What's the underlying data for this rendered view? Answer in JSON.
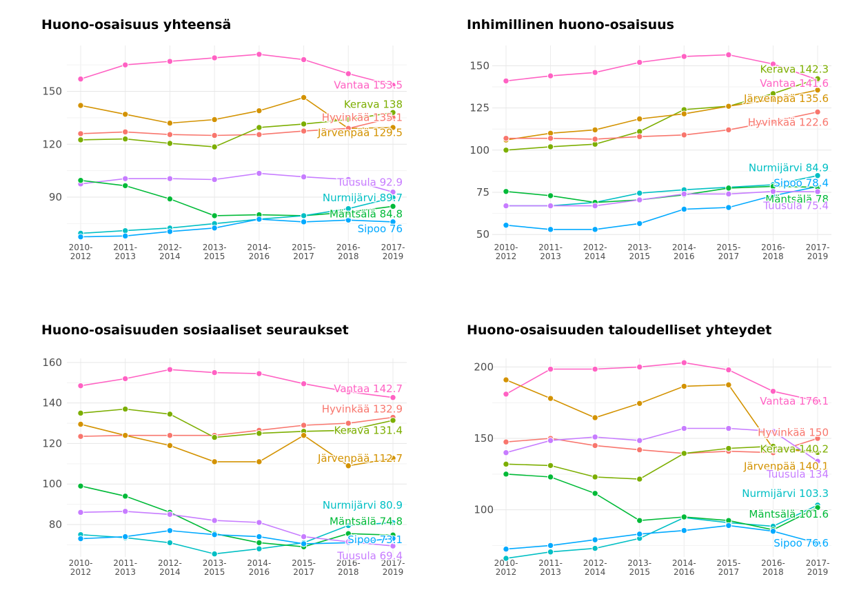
{
  "chart_data": [
    {
      "type": "line",
      "title": "Huono-osaisuus yhteensä",
      "x": [
        "2010-2012",
        "2011-2013",
        "2012-2014",
        "2013-2015",
        "2014-2016",
        "2015-2017",
        "2016-2018",
        "2017-2019"
      ],
      "yticks": [
        90,
        120,
        150
      ],
      "ylim": [
        65,
        176
      ],
      "grid": true,
      "series": [
        {
          "name": "Vantaa",
          "color": "#FF61C3",
          "values": [
            157,
            165,
            167,
            169,
            171,
            168,
            160,
            153.5
          ],
          "label": "Vantaa 153.5",
          "label_y": 153.5
        },
        {
          "name": "Järvenpää",
          "color": "#D39200",
          "values": [
            142,
            137,
            132,
            134,
            139,
            146.5,
            129,
            129.5
          ],
          "label": "Järvenpää 129.5",
          "label_y": 126.5
        },
        {
          "name": "Hyvinkää",
          "color": "#F8766D",
          "values": [
            126,
            127,
            125.5,
            125,
            125.5,
            127.5,
            129,
            135.1
          ],
          "label": "Hyvinkää 135.1",
          "label_y": 135.1
        },
        {
          "name": "Kerava",
          "color": "#7CAE00",
          "values": [
            122.5,
            123,
            120.5,
            118.5,
            129.5,
            131.5,
            134,
            138
          ],
          "label": "Kerava 138",
          "label_y": 142.5
        },
        {
          "name": "Tuusula",
          "color": "#C77CFF",
          "values": [
            97.5,
            100.5,
            100.5,
            100,
            103.5,
            101.5,
            100,
            92.9
          ],
          "label": "Tuusula 92.9",
          "label_y": 98.5
        },
        {
          "name": "Mäntsälä",
          "color": "#00BA38",
          "values": [
            99.5,
            96.5,
            89,
            79.5,
            80,
            79.5,
            81.5,
            84.8
          ],
          "label": "Mäntsälä 84.8",
          "label_y": 80.5
        },
        {
          "name": "Nurmijärvi",
          "color": "#00BFC4",
          "values": [
            69.5,
            71,
            72.5,
            75,
            77.5,
            79.5,
            83.5,
            89.7
          ],
          "label": "Nurmijärvi 89.7",
          "label_y": 89.7
        },
        {
          "name": "Sipoo",
          "color": "#00A9FF",
          "values": [
            67.5,
            68,
            70.5,
            72.5,
            77.5,
            76,
            77,
            76
          ],
          "label": "Sipoo 76",
          "label_y": 72
        }
      ]
    },
    {
      "type": "line",
      "title": "Inhimillinen huono-osaisuus",
      "x": [
        "2010-2012",
        "2011-2013",
        "2012-2014",
        "2013-2015",
        "2014-2016",
        "2015-2017",
        "2016-2018",
        "2017-2019"
      ],
      "yticks": [
        50,
        75,
        100,
        125,
        150
      ],
      "ylim": [
        46,
        162
      ],
      "grid": true,
      "series": [
        {
          "name": "Vantaa",
          "color": "#FF61C3",
          "values": [
            141,
            144,
            146,
            152,
            155.5,
            156.5,
            151,
            141.6
          ],
          "label": "Vantaa 141.6",
          "label_y": 139.5
        },
        {
          "name": "Kerava",
          "color": "#7CAE00",
          "values": [
            100,
            102,
            103.5,
            111,
            124,
            126,
            133.5,
            142.3
          ],
          "label": "Kerava 142.3",
          "label_y": 148
        },
        {
          "name": "Järvenpää",
          "color": "#D39200",
          "values": [
            106,
            110,
            112,
            118.5,
            121.5,
            126,
            130,
            135.6
          ],
          "label": "Järvenpää 135.6",
          "label_y": 130.5
        },
        {
          "name": "Hyvinkää",
          "color": "#F8766D",
          "values": [
            107,
            107,
            106.5,
            108,
            109,
            112,
            117,
            122.6
          ],
          "label": "Hyvinkää 122.6",
          "label_y": 116.5
        },
        {
          "name": "Nurmijärvi",
          "color": "#00BFC4",
          "values": [
            67,
            67,
            69,
            74.5,
            76.5,
            78,
            79.5,
            84.9
          ],
          "label": "Nurmijärvi 84.9",
          "label_y": 89.5
        },
        {
          "name": "Sipoo",
          "color": "#00A9FF",
          "values": [
            55.5,
            53,
            53,
            56.5,
            65,
            66,
            73,
            78.4
          ],
          "label": "Sipoo 78.4",
          "label_y": 80.5
        },
        {
          "name": "Mäntsälä",
          "color": "#00BA38",
          "values": [
            75.5,
            73,
            69,
            70.5,
            73.5,
            77.5,
            78.5,
            78
          ],
          "label": "Mäntsälä 78",
          "label_y": 71
        },
        {
          "name": "Tuusula",
          "color": "#C77CFF",
          "values": [
            67,
            67,
            67,
            70.5,
            74,
            74,
            75.5,
            75.4
          ],
          "label": "Tuusula 75.4",
          "label_y": 67
        }
      ]
    },
    {
      "type": "line",
      "title": "Huono-osaisuuden sosiaaliset seuraukset",
      "x": [
        "2010-2012",
        "2011-2013",
        "2012-2014",
        "2013-2015",
        "2014-2016",
        "2015-2017",
        "2016-2018",
        "2017-2019"
      ],
      "yticks": [
        80,
        100,
        120,
        140,
        160
      ],
      "ylim": [
        64,
        162
      ],
      "grid": true,
      "series": [
        {
          "name": "Vantaa",
          "color": "#FF61C3",
          "values": [
            148.5,
            152,
            156.5,
            155,
            154.5,
            149.5,
            145.5,
            142.7
          ],
          "label": "Vantaa 142.7",
          "label_y": 147
        },
        {
          "name": "Hyvinkää",
          "color": "#F8766D",
          "values": [
            123.5,
            124,
            124,
            124,
            126.5,
            129,
            130,
            132.9
          ],
          "label": "Hyvinkää 132.9",
          "label_y": 137
        },
        {
          "name": "Kerava",
          "color": "#7CAE00",
          "values": [
            135,
            137,
            134.5,
            123,
            125,
            126,
            126.5,
            131.4
          ],
          "label": "Kerava 131.4",
          "label_y": 126.5
        },
        {
          "name": "Järvenpää",
          "color": "#D39200",
          "values": [
            129.5,
            124,
            119,
            111,
            111,
            124,
            109,
            112.7
          ],
          "label": "Järvenpää 112.7",
          "label_y": 112.7
        },
        {
          "name": "Nurmijärvi",
          "color": "#00BFC4",
          "values": [
            75,
            73.5,
            71,
            65.5,
            68,
            71,
            79.5,
            80.9
          ],
          "label": "Nurmijärvi 80.9",
          "label_y": 89.5
        },
        {
          "name": "Mäntsälä",
          "color": "#00BA38",
          "values": [
            99,
            94,
            86,
            75.5,
            71,
            69,
            75.5,
            74.8
          ],
          "label": "Mäntsälä 74.8",
          "label_y": 81.5
        },
        {
          "name": "Sipoo",
          "color": "#00A9FF",
          "values": [
            73,
            74,
            77,
            75,
            74,
            70.5,
            71,
            73.1
          ],
          "label": "Sipoo 73.1",
          "label_y": 72.5
        },
        {
          "name": "Tuusula",
          "color": "#C77CFF",
          "values": [
            86,
            86.5,
            85,
            82,
            81,
            74,
            71.5,
            69.4
          ],
          "label": "Tuusula 69.4",
          "label_y": 64.5
        }
      ]
    },
    {
      "type": "line",
      "title": "Huono-osaisuuden taloudelliset yhteydet",
      "x": [
        "2010-2012",
        "2011-2013",
        "2012-2014",
        "2013-2015",
        "2014-2016",
        "2015-2017",
        "2016-2018",
        "2017-2019"
      ],
      "yticks": [
        100,
        150,
        200
      ],
      "ylim": [
        67,
        206
      ],
      "grid": true,
      "series": [
        {
          "name": "Vantaa",
          "color": "#FF61C3",
          "values": [
            181,
            198.5,
            198.5,
            200,
            203,
            198,
            183,
            176.1
          ],
          "label": "Vantaa 176.1",
          "label_y": 176.1
        },
        {
          "name": "Järvenpää",
          "color": "#D39200",
          "values": [
            191,
            178,
            164.5,
            174.5,
            186.5,
            187.5,
            143,
            140.1
          ],
          "label": "Järvenpää 140.1",
          "label_y": 130.5
        },
        {
          "name": "Hyvinkää",
          "color": "#F8766D",
          "values": [
            147.5,
            150,
            145,
            142,
            139.5,
            141,
            140,
            150
          ],
          "label": "Hyvinkää 150",
          "label_y": 154
        },
        {
          "name": "Kerava",
          "color": "#7CAE00",
          "values": [
            132,
            131,
            123,
            121.5,
            139.5,
            143,
            144.5,
            140.2
          ],
          "label": "Kerava 140.2",
          "label_y": 142.5
        },
        {
          "name": "Tuusula",
          "color": "#C77CFF",
          "values": [
            140,
            148.5,
            151,
            148.5,
            157,
            157,
            155,
            134
          ],
          "label": "Tuusula 134",
          "label_y": 125
        },
        {
          "name": "Nurmijärvi",
          "color": "#00BFC4",
          "values": [
            66,
            70.5,
            73,
            80,
            94.5,
            91,
            88.5,
            103.3
          ],
          "label": "Nurmijärvi 103.3",
          "label_y": 111.5
        },
        {
          "name": "Mäntsälä",
          "color": "#00BA38",
          "values": [
            125,
            123,
            111.5,
            92.5,
            95,
            92.5,
            86,
            101.6
          ],
          "label": "Mäntsälä 101.6",
          "label_y": 97
        },
        {
          "name": "Sipoo",
          "color": "#00A9FF",
          "values": [
            72.5,
            75,
            79,
            83,
            85.5,
            89,
            85,
            76.6
          ],
          "label": "Sipoo 76.6",
          "label_y": 76.6
        }
      ]
    }
  ]
}
